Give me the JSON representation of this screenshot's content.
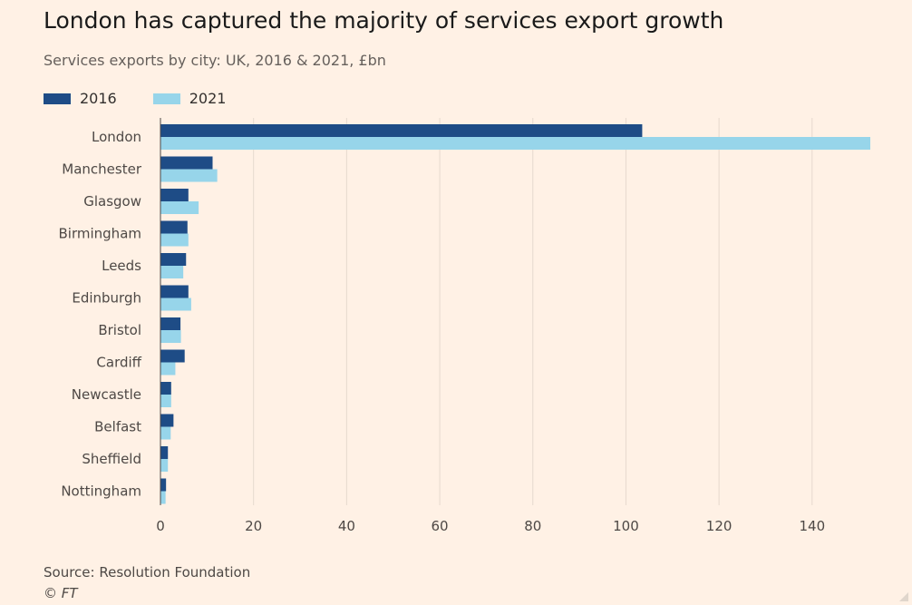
{
  "header": {
    "title": "London has captured the majority of services export growth",
    "subtitle": "Services exports by city: UK, 2016 & 2021, £bn"
  },
  "legend": {
    "items": [
      {
        "label": "2016",
        "color": "#1e4c86"
      },
      {
        "label": "2021",
        "color": "#97d5ea"
      }
    ]
  },
  "chart_data": {
    "type": "bar",
    "orientation": "horizontal",
    "title": "London has captured the majority of services export growth",
    "subtitle": "Services exports by city: UK, 2016 & 2021, £bn",
    "xlabel": "",
    "ylabel": "",
    "categories": [
      "London",
      "Manchester",
      "Glasgow",
      "Birmingham",
      "Leeds",
      "Edinburgh",
      "Bristol",
      "Cardiff",
      "Newcastle",
      "Belfast",
      "Sheffield",
      "Nottingham"
    ],
    "series": [
      {
        "name": "2016",
        "color": "#1e4c86",
        "values": [
          103.5,
          11.2,
          6.0,
          5.8,
          5.5,
          6.0,
          4.3,
          5.2,
          2.3,
          2.8,
          1.6,
          1.2
        ]
      },
      {
        "name": "2021",
        "color": "#97d5ea",
        "values": [
          152.5,
          12.2,
          8.2,
          6.0,
          4.9,
          6.6,
          4.4,
          3.2,
          2.3,
          2.2,
          1.6,
          1.1
        ]
      }
    ],
    "xlim": [
      0,
      152.5
    ],
    "xticks": [
      0,
      20,
      40,
      60,
      80,
      100,
      120,
      140
    ],
    "grid": "vertical",
    "legend_position": "top-left"
  },
  "footer": {
    "source": "Source: Resolution Foundation",
    "credit": "© FT"
  }
}
